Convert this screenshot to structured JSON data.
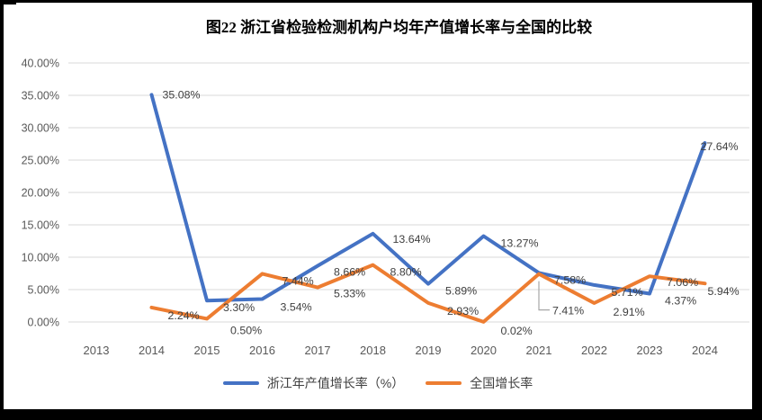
{
  "page_title": "图22 浙江省检验检测机构户均年产值增长率与全国的比较",
  "chart_data": {
    "type": "line",
    "title": "图22 浙江省检验检测机构户均年产值增长率与全国的比较",
    "categories": [
      "2013",
      "2014",
      "2015",
      "2016",
      "2017",
      "2018",
      "2019",
      "2020",
      "2021",
      "2022",
      "2023",
      "2024"
    ],
    "series": [
      {
        "name": "浙江年产值增长率（%）",
        "color": "#4472C4",
        "values": [
          null,
          35.08,
          3.3,
          3.54,
          8.66,
          13.64,
          5.89,
          13.27,
          7.58,
          5.71,
          4.37,
          27.64
        ],
        "labels": [
          null,
          "35.08%",
          "3.30%",
          "3.54%",
          "8.66%",
          "13.64%",
          "5.89%",
          "13.27%",
          "7.58%",
          "5.71%",
          "4.37%",
          "27.64%"
        ]
      },
      {
        "name": "全国增长率",
        "color": "#ED7D31",
        "values": [
          null,
          2.24,
          0.5,
          7.44,
          5.33,
          8.8,
          2.93,
          0.02,
          7.41,
          2.91,
          7.06,
          5.94
        ],
        "labels": [
          null,
          "2.24%",
          "0.50%",
          "7.44%",
          "5.33%",
          "8.80%",
          "2.93%",
          "0.02%",
          "7.41%",
          "2.91%",
          "7.06%",
          "5.94%"
        ]
      }
    ],
    "xlabel": "",
    "ylabel": "",
    "ylim": [
      0,
      40
    ],
    "y_ticks": [
      "0.00%",
      "5.00%",
      "10.00%",
      "15.00%",
      "20.00%",
      "25.00%",
      "30.00%",
      "35.00%",
      "40.00%"
    ],
    "grid": true,
    "legend_position": "bottom",
    "gridline_color": "#D9D9D9",
    "axis_label_color": "#595959",
    "data_label_color": "#404040",
    "leader_line_color": "#A6A6A6"
  }
}
